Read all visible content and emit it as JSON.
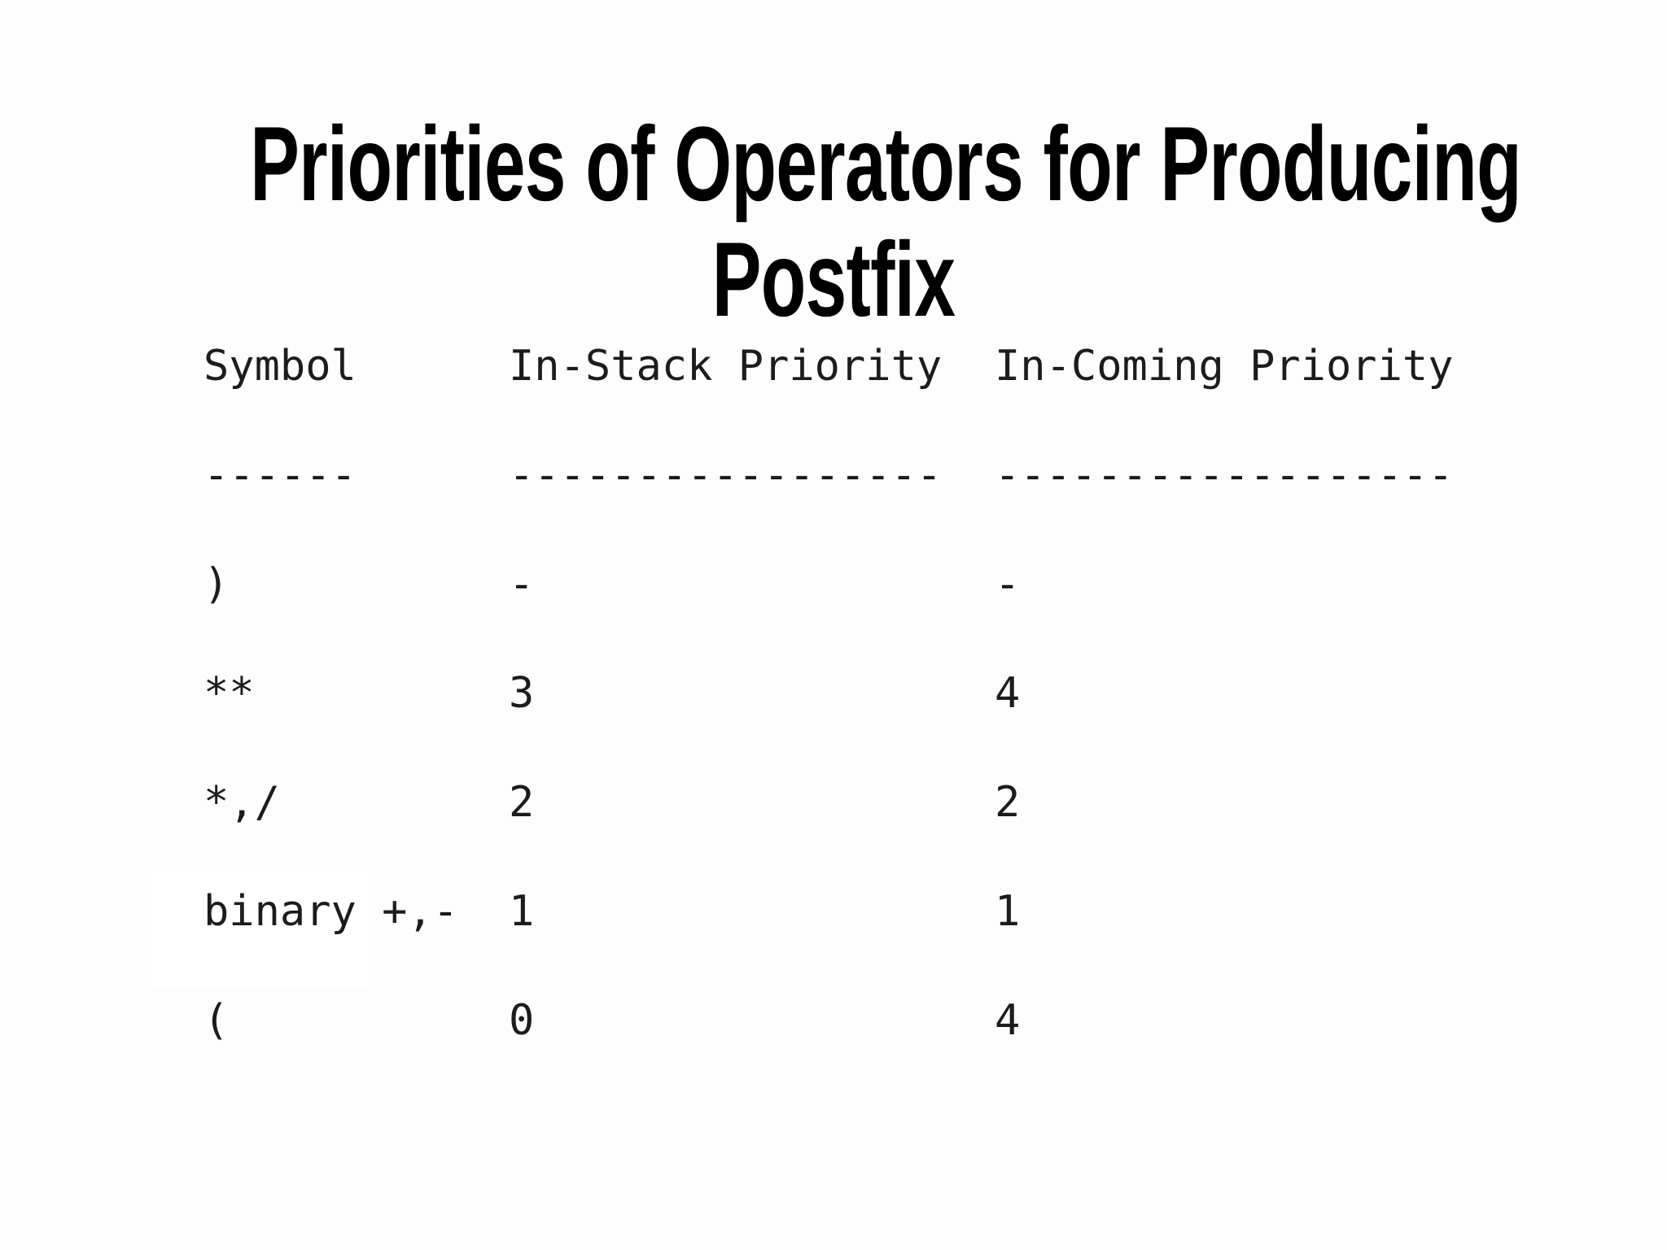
{
  "slide": {
    "title_line1": "Priorities of Operators for Producing",
    "title_line2": "Postfix",
    "background_color": "#fdfdfd",
    "title_color": "#000000",
    "table_text_color": "#1c1c1c"
  },
  "table": {
    "headers": {
      "symbol": "Symbol",
      "in_stack": "In-Stack Priority",
      "in_coming": "In-Coming Priority"
    },
    "separators": {
      "symbol": "------",
      "in_stack": "-----------------",
      "in_coming": "------------------"
    },
    "rows": [
      {
        "symbol": ")",
        "in_stack": "-",
        "in_coming": "-"
      },
      {
        "symbol": "**",
        "in_stack": "3",
        "in_coming": "4"
      },
      {
        "symbol": "*,/",
        "in_stack": "2",
        "in_coming": "2"
      },
      {
        "symbol": "binary +,-",
        "in_stack": "1",
        "in_coming": "1"
      },
      {
        "symbol": "(",
        "in_stack": "0",
        "in_coming": "4"
      }
    ]
  }
}
